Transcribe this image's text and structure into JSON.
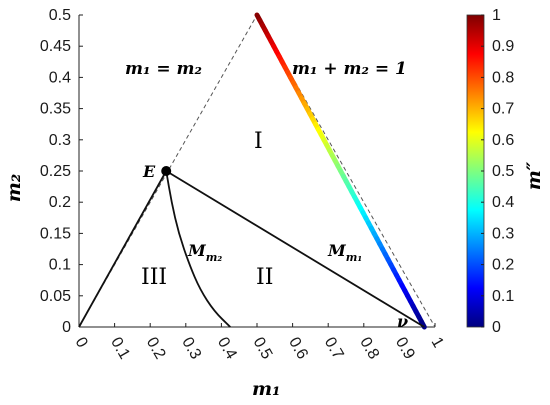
{
  "chart_data": {
    "type": "line",
    "xlabel": "m₁",
    "ylabel": "m₂",
    "xlim": [
      0,
      1
    ],
    "ylim": [
      0,
      0.5
    ],
    "x_ticks": [
      0,
      0.1,
      0.2,
      0.3,
      0.4,
      0.5,
      0.6,
      0.7,
      0.8,
      0.9,
      1
    ],
    "x_tick_labels": [
      "0",
      "0.1",
      "0.2",
      "0.3",
      "0.4",
      "0.5",
      "0.6",
      "0.7",
      "0.8",
      "0.9",
      "1"
    ],
    "y_ticks": [
      0,
      0.05,
      0.1,
      0.15,
      0.2,
      0.25,
      0.3,
      0.35,
      0.4,
      0.45,
      0.5
    ],
    "y_tick_labels": [
      "0",
      "0.05",
      "0.1",
      "0.15",
      "0.2",
      "0.25",
      "0.3",
      "0.35",
      "0.4",
      "0.45",
      "0.5"
    ],
    "colorbar": {
      "label": "m″",
      "range": [
        0,
        1
      ],
      "ticks": [
        0,
        0.1,
        0.2,
        0.3,
        0.4,
        0.5,
        0.6,
        0.7,
        0.8,
        0.9,
        1
      ],
      "tick_labels": [
        "0",
        "0.1",
        "0.2",
        "0.3",
        "0.4",
        "0.5",
        "0.6",
        "0.7",
        "0.8",
        "0.9",
        "1"
      ],
      "colormap": "jet"
    },
    "boundary_lines": [
      {
        "label": "m₁ = m₂",
        "points": [
          [
            0,
            0
          ],
          [
            0.5,
            0.5
          ]
        ],
        "style": "dashed"
      },
      {
        "label": "m₁ + m₂ = 1",
        "points": [
          [
            0.5,
            0.5
          ],
          [
            1,
            0
          ]
        ],
        "style": "dashed"
      }
    ],
    "solid_lines": [
      {
        "from": "origin",
        "points": [
          [
            0,
            0
          ],
          [
            0.245,
            0.25
          ]
        ]
      },
      {
        "label": "M_{m₁}",
        "points": [
          [
            0.245,
            0.25
          ],
          [
            0.97,
            0
          ]
        ]
      }
    ],
    "curve": {
      "label": "M_{m₂}",
      "points": [
        [
          0.245,
          0.25
        ],
        [
          0.26,
          0.2
        ],
        [
          0.28,
          0.15
        ],
        [
          0.31,
          0.1
        ],
        [
          0.34,
          0.06
        ],
        [
          0.38,
          0.025
        ],
        [
          0.425,
          0
        ]
      ]
    },
    "colored_segment": {
      "points": [
        [
          0.5,
          0.5
        ],
        [
          0.97,
          0.0
        ]
      ],
      "color_values": [
        1.0,
        0.0
      ]
    },
    "points": [
      {
        "label": "E",
        "x": 0.245,
        "y": 0.25
      },
      {
        "label": "ν",
        "x": 0.97,
        "y": 0.0
      }
    ],
    "regions": [
      {
        "label": "I",
        "x": 0.52,
        "y": 0.36
      },
      {
        "label": "II",
        "x": 0.53,
        "y": 0.1
      },
      {
        "label": "III",
        "x": 0.1,
        "y": 0.1
      }
    ],
    "annotations": {
      "line_eq1": "m₁ = m₂",
      "line_eq2": "m₁ + m₂ = 1",
      "curve_m1": "M",
      "curve_m1_sub": "m₁",
      "curve_m2": "M",
      "curve_m2_sub": "m₂",
      "point_E": "E",
      "point_nu": "ν"
    }
  }
}
